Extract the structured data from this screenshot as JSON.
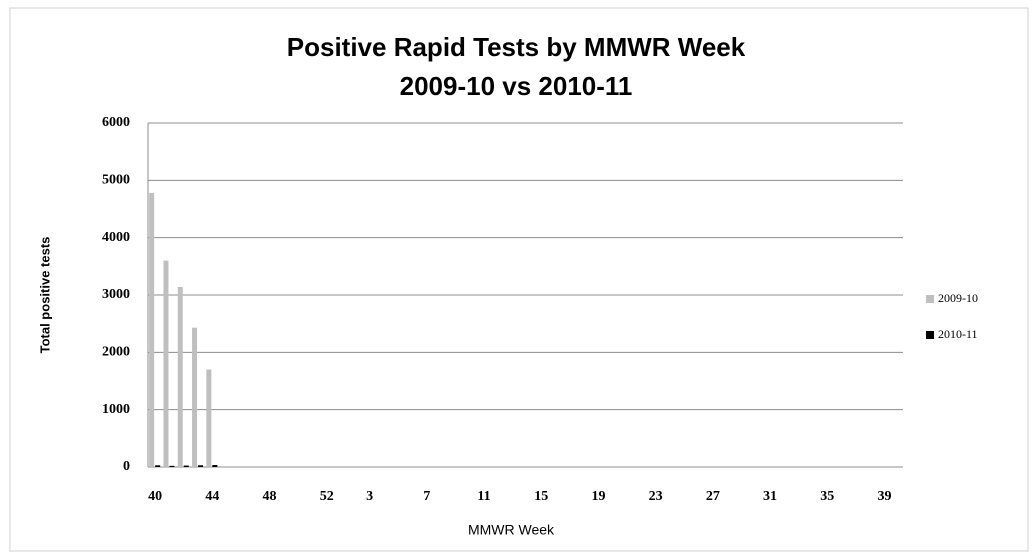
{
  "chart_data": {
    "type": "bar",
    "title": "Positive Rapid Tests by MMWR Week",
    "subtitle": "2009-10 vs 2010-11",
    "x_label": "MMWR Week",
    "y_label": "Total positive tests",
    "categories": [
      "40",
      null,
      null,
      null,
      "44",
      null,
      null,
      null,
      "48",
      null,
      null,
      null,
      "52",
      null,
      null,
      "3",
      null,
      null,
      null,
      "7",
      null,
      null,
      null,
      "11",
      null,
      null,
      null,
      "15",
      null,
      null,
      null,
      "19",
      null,
      null,
      null,
      "23",
      null,
      null,
      null,
      "27",
      null,
      null,
      null,
      "31",
      null,
      null,
      null,
      "35",
      null,
      null,
      null,
      "39"
    ],
    "series": [
      {
        "name": "2009-10",
        "color": "#bfbfbf",
        "values": [
          4780,
          3600,
          3140,
          2430,
          1700,
          null,
          null,
          null,
          null,
          null,
          null,
          null,
          null,
          null,
          null,
          null,
          null,
          null,
          null,
          null,
          null,
          null,
          null,
          null,
          null,
          null,
          null,
          null,
          null,
          null,
          null,
          null,
          null,
          null,
          null,
          null,
          null,
          null,
          null,
          null,
          null,
          null,
          null,
          null,
          null,
          null,
          null,
          null,
          null,
          null,
          null,
          null
        ]
      },
      {
        "name": "2010-11",
        "color": "#000000",
        "values": [
          30,
          20,
          25,
          30,
          35,
          null,
          null,
          null,
          null,
          null,
          null,
          null,
          null,
          null,
          null,
          null,
          null,
          null,
          null,
          null,
          null,
          null,
          null,
          null,
          null,
          null,
          null,
          null,
          null,
          null,
          null,
          null,
          null,
          null,
          null,
          null,
          null,
          null,
          null,
          null,
          null,
          null,
          null,
          null,
          null,
          null,
          null,
          null,
          null,
          null,
          null,
          null
        ]
      }
    ],
    "ylim": [
      0,
      6000
    ],
    "yticks": [
      0,
      1000,
      2000,
      3000,
      4000,
      5000,
      6000
    ],
    "grid": true,
    "legend": "right"
  }
}
